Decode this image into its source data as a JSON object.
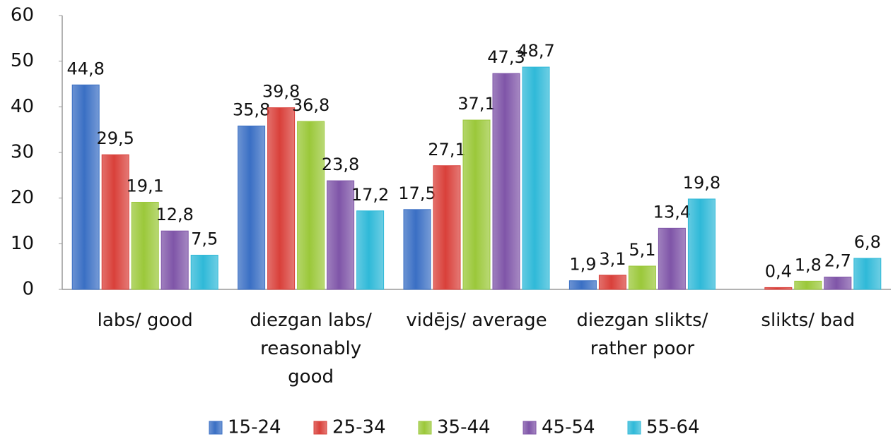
{
  "chart_data": {
    "type": "bar",
    "categories": [
      "labs/ good",
      "diezgan labs/ reasonably good",
      "vidējs/ average",
      "diezgan slikts/ rather poor",
      "slikts/ bad"
    ],
    "series": [
      {
        "name": "15-24",
        "color": "#3a6fc4",
        "values": [
          44.8,
          35.8,
          17.5,
          1.9,
          null
        ],
        "value_labels": [
          "44,8",
          "35,8",
          "17,5",
          "1,9",
          null
        ]
      },
      {
        "name": "25-34",
        "color": "#d9403a",
        "values": [
          29.5,
          39.8,
          27.1,
          3.1,
          0.4
        ],
        "value_labels": [
          "29,5",
          "39,8",
          "27,1",
          "3,1",
          "0,4"
        ]
      },
      {
        "name": "35-44",
        "color": "#9bc83a",
        "values": [
          19.1,
          36.8,
          37.1,
          5.1,
          1.8
        ],
        "value_labels": [
          "19,1",
          "36,8",
          "37,1",
          "5,1",
          "1,8"
        ]
      },
      {
        "name": "45-54",
        "color": "#7f55a8",
        "values": [
          12.8,
          23.8,
          47.3,
          13.4,
          2.7
        ],
        "value_labels": [
          "12,8",
          "23,8",
          "47,3",
          "13,4",
          "2,7"
        ]
      },
      {
        "name": "55-64",
        "color": "#2fb9d8",
        "values": [
          7.5,
          17.2,
          48.7,
          19.8,
          6.8
        ],
        "value_labels": [
          "7,5",
          "17,2",
          "48,7",
          "19,8",
          "6,8"
        ]
      }
    ],
    "ylim": [
      0,
      60
    ],
    "yticks": [
      0,
      10,
      20,
      30,
      40,
      50,
      60
    ],
    "grid": false,
    "legend": "bottom"
  }
}
